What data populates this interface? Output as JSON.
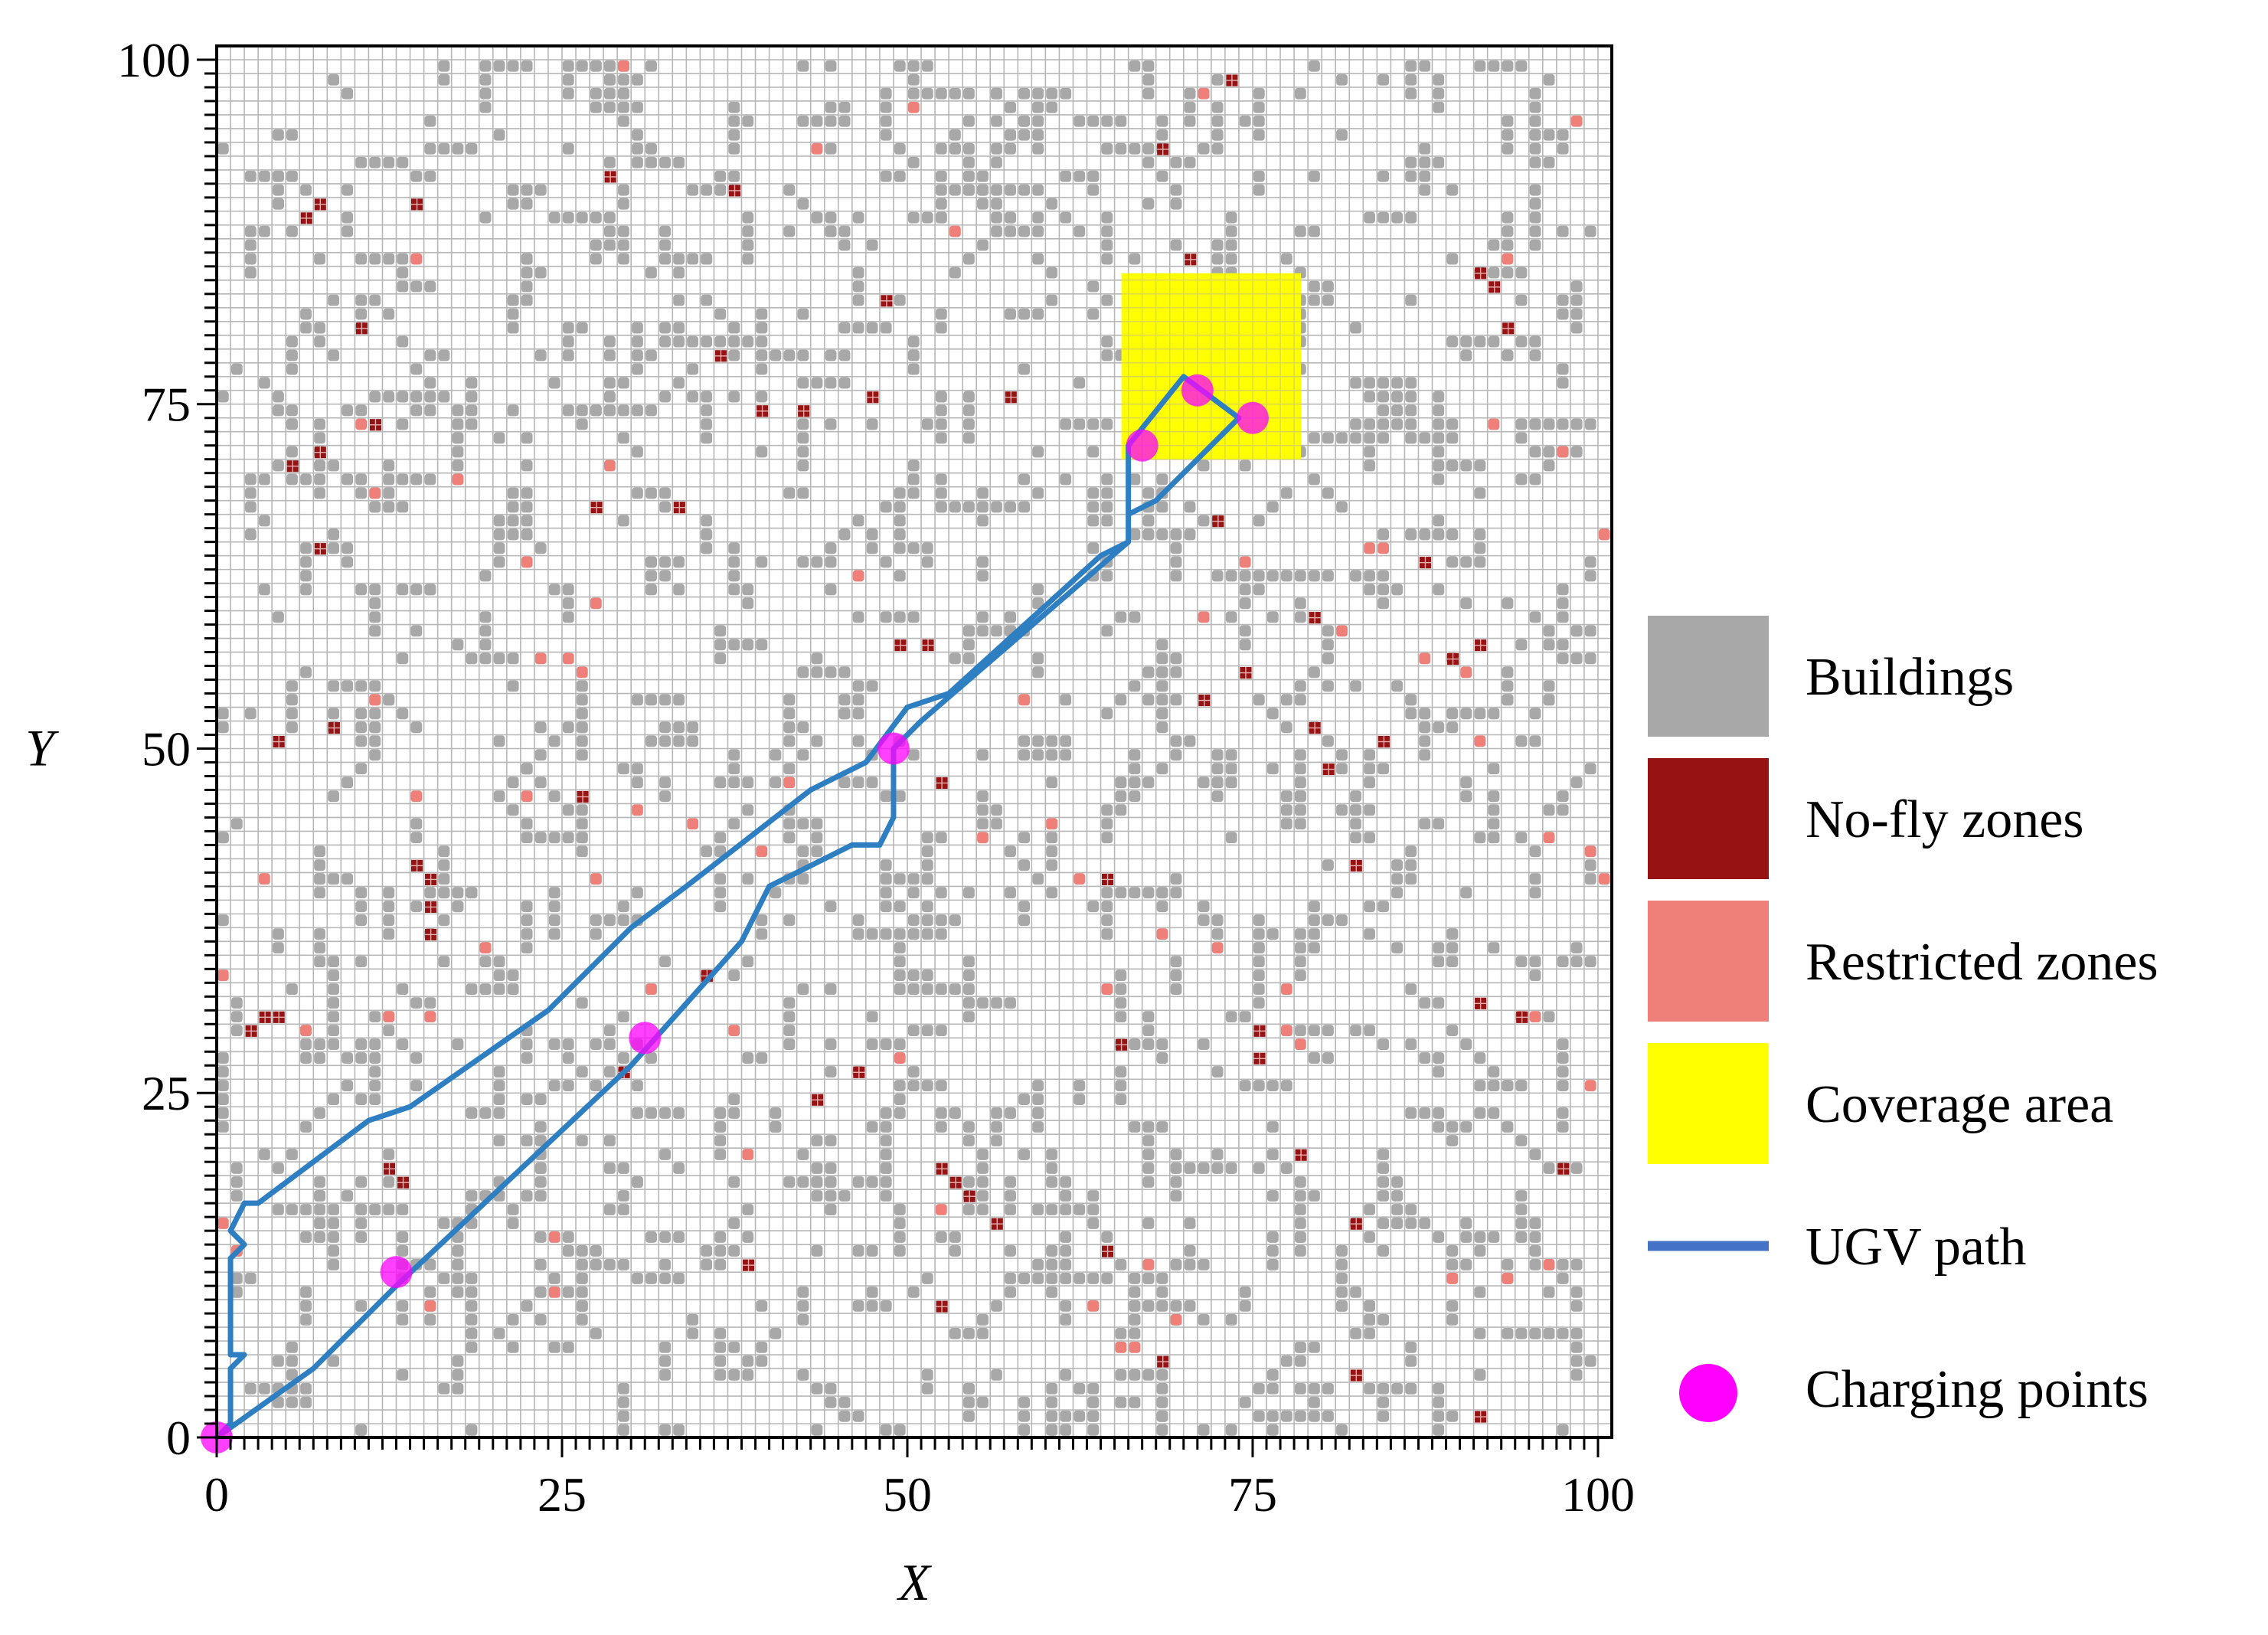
{
  "chart_data": {
    "type": "scatter",
    "title": "",
    "xlabel": "X",
    "ylabel": "Y",
    "xlim": [
      0,
      101
    ],
    "ylim": [
      0,
      101
    ],
    "grid": true,
    "xticks": [
      0,
      25,
      50,
      75,
      100
    ],
    "yticks": [
      0,
      25,
      50,
      75,
      100
    ],
    "coverage_area": {
      "x": [
        65.5,
        78.5
      ],
      "y": [
        71,
        84.5
      ]
    },
    "ugv_path": [
      [
        0,
        0
      ],
      [
        7,
        5
      ],
      [
        13,
        11
      ],
      [
        30,
        27
      ],
      [
        38,
        36
      ],
      [
        40,
        40
      ],
      [
        46,
        43
      ],
      [
        48,
        43
      ],
      [
        49,
        45
      ],
      [
        49,
        50
      ],
      [
        51,
        52
      ],
      [
        66,
        65
      ],
      [
        66,
        72
      ],
      [
        66,
        67
      ],
      [
        68,
        68
      ],
      [
        74,
        74
      ],
      [
        70,
        77
      ],
      [
        66,
        72
      ],
      [
        66,
        65
      ],
      [
        64,
        64
      ],
      [
        53,
        54
      ],
      [
        50,
        53
      ],
      [
        47,
        49
      ],
      [
        43,
        47
      ],
      [
        34,
        40
      ],
      [
        30,
        37
      ],
      [
        24,
        31
      ],
      [
        14,
        24
      ],
      [
        11,
        23
      ],
      [
        3,
        17
      ],
      [
        2,
        17
      ],
      [
        1,
        15
      ],
      [
        2,
        14
      ],
      [
        1,
        13
      ],
      [
        1,
        6
      ],
      [
        2,
        6
      ],
      [
        1,
        5
      ],
      [
        1,
        1
      ],
      [
        0,
        0
      ]
    ],
    "charging_points": [
      [
        0,
        0
      ],
      [
        13,
        12
      ],
      [
        31,
        29
      ],
      [
        49,
        50
      ],
      [
        67,
        72
      ],
      [
        71,
        76
      ],
      [
        75,
        74
      ]
    ],
    "no_fly_zones": [
      [
        2,
        29
      ],
      [
        3,
        30
      ],
      [
        4,
        30
      ],
      [
        4,
        50
      ],
      [
        5,
        70
      ],
      [
        6,
        88
      ],
      [
        7,
        89
      ],
      [
        7,
        71
      ],
      [
        7,
        64
      ],
      [
        8,
        51
      ],
      [
        10,
        80
      ],
      [
        11,
        73
      ],
      [
        12,
        19
      ],
      [
        13,
        18
      ],
      [
        14,
        89
      ],
      [
        14,
        41
      ],
      [
        15,
        40
      ],
      [
        15,
        38
      ],
      [
        15,
        36
      ],
      [
        26,
        46
      ],
      [
        27,
        67
      ],
      [
        28,
        91
      ],
      [
        29,
        26
      ],
      [
        33,
        67
      ],
      [
        35,
        33
      ],
      [
        36,
        78
      ],
      [
        37,
        90
      ],
      [
        38,
        12
      ],
      [
        39,
        74
      ],
      [
        42,
        74
      ],
      [
        43,
        24
      ],
      [
        46,
        26
      ],
      [
        47,
        75
      ],
      [
        49,
        57
      ],
      [
        48,
        82
      ],
      [
        51,
        57
      ],
      [
        52,
        47
      ],
      [
        52,
        19
      ],
      [
        52,
        9
      ],
      [
        53,
        18
      ],
      [
        54,
        17
      ],
      [
        56,
        15
      ],
      [
        57,
        75
      ],
      [
        64,
        13
      ],
      [
        64,
        40
      ],
      [
        65,
        28
      ],
      [
        68,
        5
      ],
      [
        68,
        93
      ],
      [
        70,
        85
      ],
      [
        71,
        53
      ],
      [
        72,
        66
      ],
      [
        73,
        98
      ],
      [
        75,
        27
      ],
      [
        75,
        29
      ],
      [
        78,
        20
      ],
      [
        79,
        59
      ],
      [
        79,
        51
      ],
      [
        80,
        48
      ],
      [
        82,
        15
      ],
      [
        82,
        41
      ],
      [
        82,
        4
      ],
      [
        84,
        50
      ],
      [
        87,
        63
      ],
      [
        89,
        56
      ],
      [
        91,
        1
      ],
      [
        91,
        84
      ],
      [
        91,
        57
      ],
      [
        91,
        31
      ],
      [
        92,
        83
      ],
      [
        93,
        80
      ],
      [
        94,
        30
      ],
      [
        97,
        19
      ],
      [
        74,
        55
      ]
    ],
    "restricted_zones": [
      [
        0,
        33
      ],
      [
        0,
        15
      ],
      [
        1,
        13
      ],
      [
        3,
        40
      ],
      [
        6,
        29
      ],
      [
        10,
        73
      ],
      [
        11,
        68
      ],
      [
        11,
        53
      ],
      [
        12,
        30
      ],
      [
        14,
        85
      ],
      [
        14,
        46
      ],
      [
        15,
        30
      ],
      [
        15,
        9
      ],
      [
        17,
        69
      ],
      [
        19,
        35
      ],
      [
        22,
        63
      ],
      [
        22,
        46
      ],
      [
        23,
        56
      ],
      [
        24,
        14
      ],
      [
        24,
        10
      ],
      [
        25,
        56
      ],
      [
        26,
        55
      ],
      [
        27,
        40
      ],
      [
        27,
        60
      ],
      [
        28,
        70
      ],
      [
        29,
        99
      ],
      [
        30,
        45
      ],
      [
        31,
        32
      ],
      [
        34,
        44
      ],
      [
        37,
        29
      ],
      [
        38,
        20
      ],
      [
        39,
        42
      ],
      [
        41,
        47
      ],
      [
        43,
        93
      ],
      [
        46,
        62
      ],
      [
        49,
        27
      ],
      [
        50,
        96
      ],
      [
        52,
        16
      ],
      [
        53,
        87
      ],
      [
        55,
        43
      ],
      [
        58,
        53
      ],
      [
        60,
        44
      ],
      [
        62,
        40
      ],
      [
        63,
        9
      ],
      [
        64,
        32
      ],
      [
        65,
        6
      ],
      [
        66,
        6
      ],
      [
        67,
        78
      ],
      [
        67,
        12
      ],
      [
        68,
        36
      ],
      [
        69,
        8
      ],
      [
        71,
        97
      ],
      [
        71,
        59
      ],
      [
        72,
        35
      ],
      [
        74,
        63
      ],
      [
        77,
        32
      ],
      [
        77,
        29
      ],
      [
        78,
        28
      ],
      [
        83,
        64
      ],
      [
        84,
        64
      ],
      [
        87,
        56
      ],
      [
        89,
        56
      ],
      [
        89,
        11
      ],
      [
        90,
        55
      ],
      [
        91,
        50
      ],
      [
        92,
        73
      ],
      [
        93,
        85
      ],
      [
        93,
        11
      ],
      [
        94,
        30
      ],
      [
        95,
        30
      ],
      [
        96,
        43
      ],
      [
        96,
        12
      ],
      [
        97,
        71
      ],
      [
        98,
        95
      ],
      [
        99,
        25
      ],
      [
        99,
        42
      ],
      [
        100,
        65
      ],
      [
        100,
        40
      ],
      [
        81,
        58
      ]
    ],
    "legend": [
      {
        "label": "Buildings",
        "color": "#a8a8a8",
        "marker": "square"
      },
      {
        "label": "No-fly zones",
        "color": "#971313",
        "marker": "square"
      },
      {
        "label": "Restricted zones",
        "color": "#ee7f79",
        "marker": "square"
      },
      {
        "label": "Coverage area",
        "color": "#ffff00",
        "marker": "square"
      },
      {
        "label": "UGV path",
        "color": "#4472c4",
        "marker": "line"
      },
      {
        "label": "Charging points",
        "color": "#ff00ff",
        "marker": "circle"
      }
    ],
    "legend_position": "right",
    "colors": {
      "grid": "#b7b7b7",
      "building": "#a8a8a8",
      "path": "#2e7fc1",
      "no_fly": "#971313",
      "restricted": "#ee7f79",
      "coverage": "#ffff00",
      "charging": "#ff00ff"
    }
  }
}
